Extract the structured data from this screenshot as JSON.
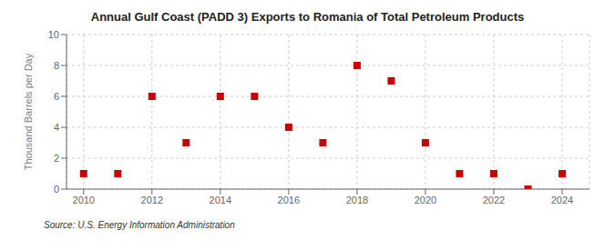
{
  "chart_data": {
    "type": "scatter",
    "title": "Annual Gulf Coast (PADD 3) Exports to Romania of Total Petroleum Products",
    "ylabel": "Thousand Barrels per Day",
    "annotations": [
      "Source: U.S. Energy Information Administration"
    ],
    "x": [
      2010,
      2011,
      2012,
      2013,
      2014,
      2015,
      2016,
      2017,
      2018,
      2019,
      2020,
      2021,
      2022,
      2023,
      2024
    ],
    "values": [
      1,
      1,
      6,
      3,
      6,
      6,
      4,
      3,
      8,
      7,
      3,
      1,
      1,
      0,
      1
    ],
    "color": "#cc0000",
    "marker": "square",
    "xlim": [
      2009.5,
      2024.8
    ],
    "xticks": [
      2010,
      2012,
      2014,
      2016,
      2018,
      2020,
      2022,
      2024
    ],
    "ylim": [
      0,
      10
    ],
    "yticks": [
      0,
      2,
      4,
      6,
      8,
      10
    ],
    "grid": true
  }
}
